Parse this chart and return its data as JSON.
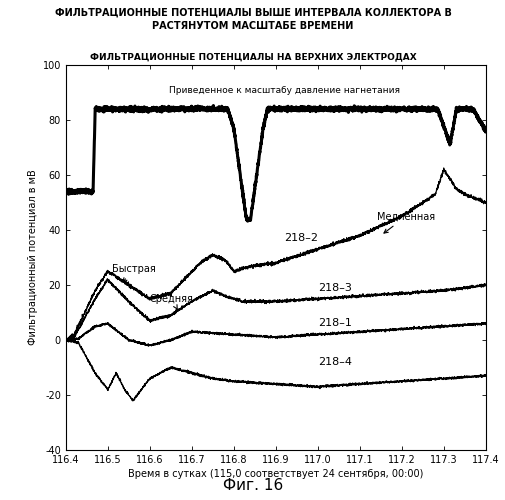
{
  "title_main": "ФИЛЬТРАЦИОННЫЕ ПОТЕНЦИАЛЫ ВЫШЕ ИНТЕРВАЛА КОЛЛЕКТОРА В\nРАСТЯНУТОМ МАСШТАБЕ ВРЕМЕНИ",
  "subtitle": "ФИЛЬТРАЦИОННЫЕ ПОТЕНЦИАЛЫ НА ВЕРХНИХ ЭЛЕКТРОДАХ",
  "xlabel": "Время в сутках (115,0 соответствует 24 сентября, 00:00)",
  "ylabel": "Фильтрационный потенциал в мВ",
  "fig_label": "Фиг. 16",
  "xlim": [
    116.4,
    117.4
  ],
  "ylim": [
    -40,
    100
  ],
  "xticks": [
    116.4,
    116.5,
    116.6,
    116.7,
    116.8,
    116.9,
    117.0,
    117.1,
    117.2,
    117.3,
    117.4
  ],
  "yticks": [
    -40,
    -20,
    0,
    20,
    40,
    60,
    80,
    100
  ],
  "pressure_annotation": "Приведенное к масштабу давление нагнетания"
}
